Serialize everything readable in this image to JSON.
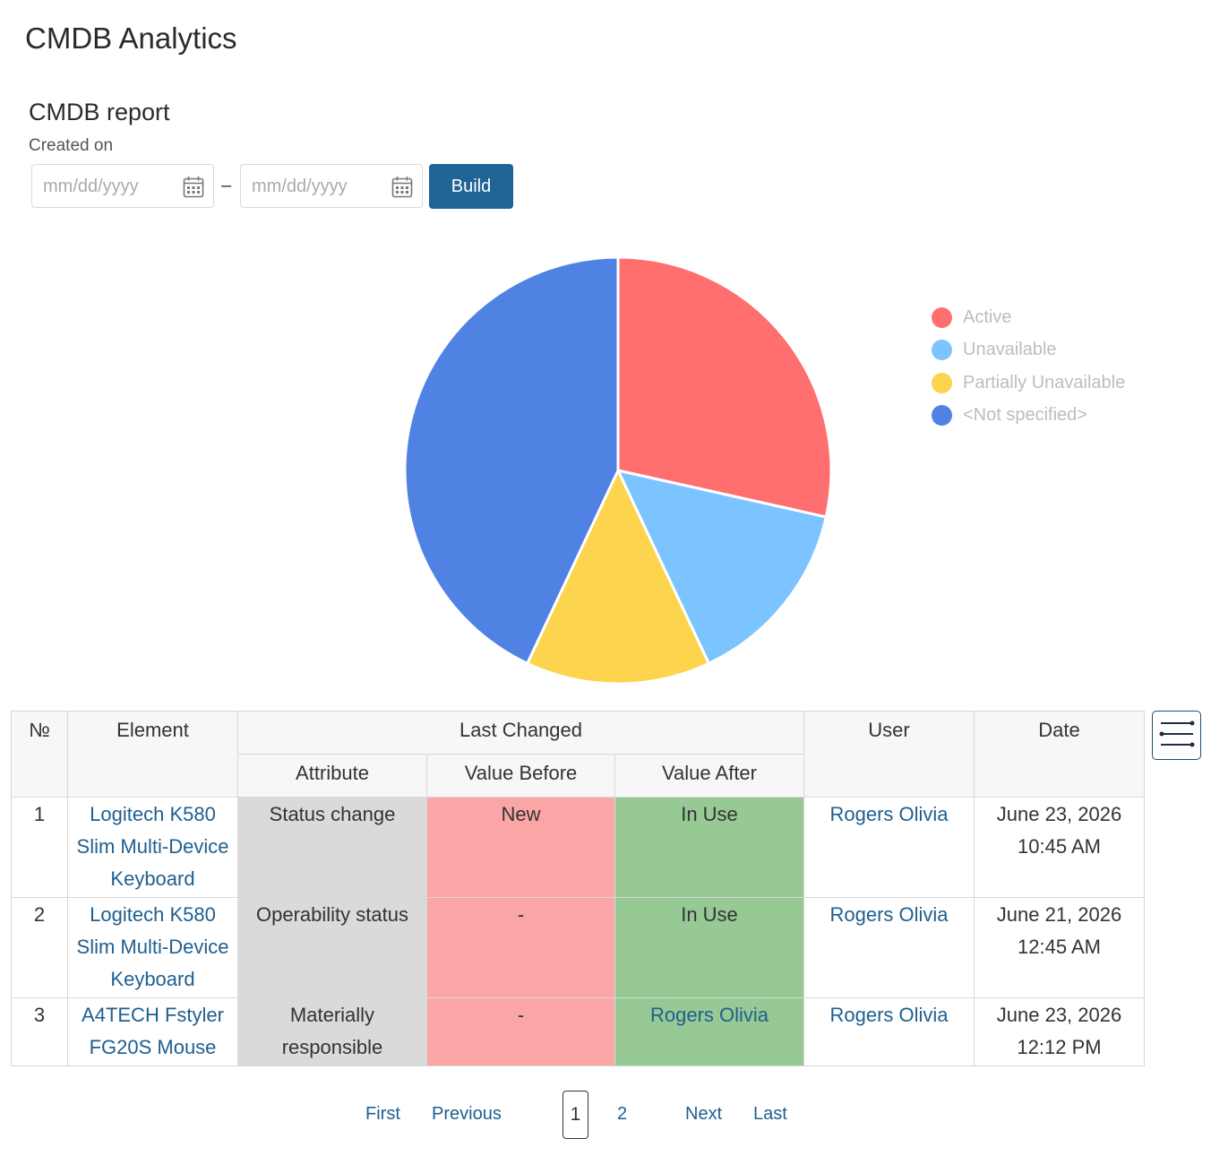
{
  "page": {
    "title": "CMDB Analytics"
  },
  "report": {
    "title": "CMDB report",
    "created_label": "Created on",
    "date_from": {
      "value": "",
      "placeholder": "mm/dd/yyyy"
    },
    "date_separator": "–",
    "date_to": {
      "value": "",
      "placeholder": "mm/dd/yyyy"
    },
    "build_label": "Build"
  },
  "chart_data": {
    "type": "pie",
    "slices": [
      {
        "label": "Active",
        "value": 28.5,
        "color": "#ff6f6f"
      },
      {
        "label": "Unavailable",
        "value": 14.5,
        "color": "#7cc4ff"
      },
      {
        "label": "Partially Unavailable",
        "value": 14.0,
        "color": "#fdd44d"
      },
      {
        "label": "<Not specified>",
        "value": 43.0,
        "color": "#5082e3"
      }
    ],
    "legend_position": "right"
  },
  "table": {
    "headers": {
      "num": "№",
      "element": "Element",
      "last_changed": "Last Changed",
      "attribute": "Attribute",
      "value_before": "Value Before",
      "value_after": "Value After",
      "user": "User",
      "date": "Date"
    },
    "rows": [
      {
        "num": "1",
        "element": "Logitech K580 Slim Multi-Device Keyboard",
        "attribute": "Status change",
        "value_before": "New",
        "value_after": "In Use",
        "user": "Rogers Olivia",
        "date": "June 23, 2026",
        "time": "10:45 AM"
      },
      {
        "num": "2",
        "element": "Logitech K580 Slim Multi-Device Keyboard",
        "attribute": "Operability status",
        "value_before": "-",
        "value_after": "In Use",
        "user": "Rogers Olivia",
        "date": "June 21, 2026",
        "time": "12:45 AM"
      },
      {
        "num": "3",
        "element": "A4TECH Fstyler FG20S Mouse",
        "attribute": "Materially responsible",
        "value_before": "-",
        "value_after": "Rogers Olivia",
        "user": "Rogers Olivia",
        "date": "June 23, 2026",
        "time": "12:12 PM"
      }
    ],
    "settings_icon": "column-settings-icon"
  },
  "pagination": {
    "first": "First",
    "previous": "Previous",
    "current": "1",
    "page2": "2",
    "next": "Next",
    "last": "Last"
  }
}
